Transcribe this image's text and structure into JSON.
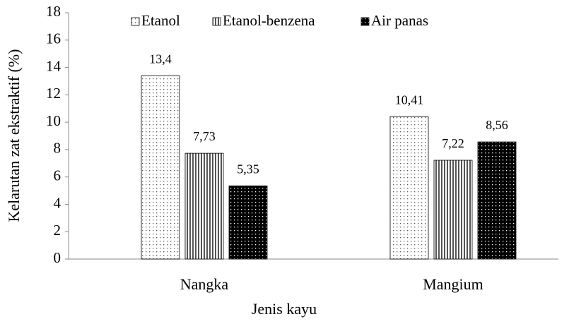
{
  "chart_data": {
    "type": "bar",
    "y_label": "Kelarutan zat ekstraktif (%)",
    "x_label": "Jenis kayu",
    "categories": [
      "Nangka",
      "Mangium"
    ],
    "series": [
      {
        "name": "Etanol",
        "color": "#ffffff",
        "values": [
          13.4,
          10.41
        ],
        "value_labels": [
          "13,4",
          "10,41"
        ]
      },
      {
        "name": "Etanol-benzena",
        "color": "#808080",
        "values": [
          7.73,
          7.22
        ],
        "value_labels": [
          "7,73",
          "7,22"
        ]
      },
      {
        "name": "Air panas",
        "color": "#000000",
        "values": [
          5.35,
          8.56
        ],
        "value_labels": [
          "5,35",
          "8,56"
        ]
      }
    ],
    "ylim": [
      0,
      18
    ],
    "yticks": [
      0,
      2,
      4,
      6,
      8,
      10,
      12,
      14,
      16,
      18
    ],
    "grid": false,
    "legend": "top"
  }
}
